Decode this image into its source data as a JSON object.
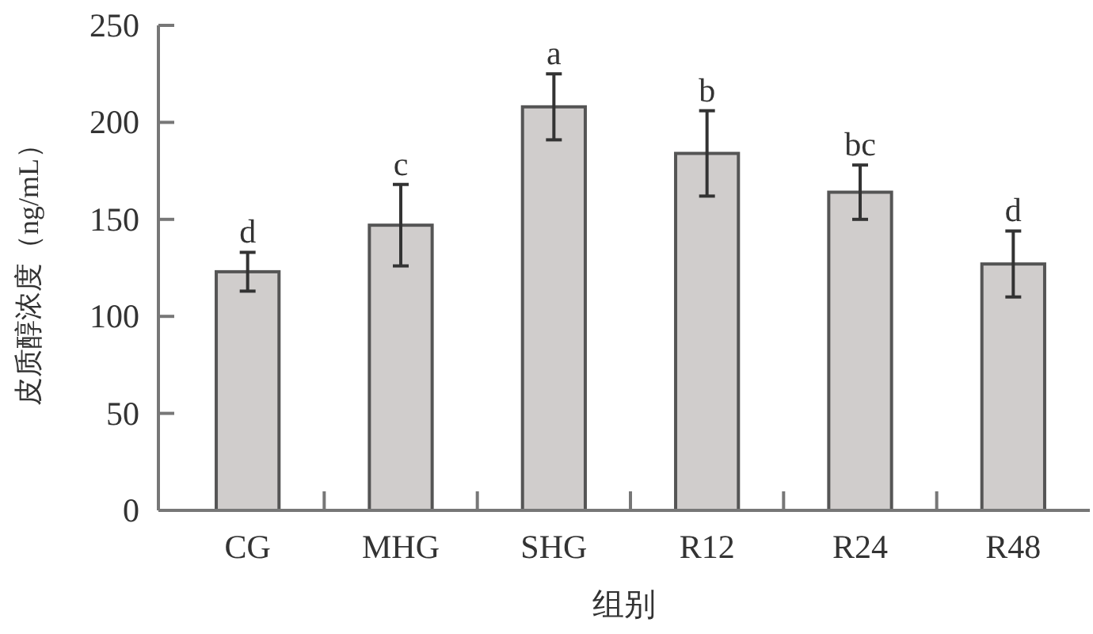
{
  "chart_data": {
    "type": "bar",
    "xlabel": "组别",
    "ylabel": "皮质醇浓度（ng/mL）",
    "categories": [
      "CG",
      "MHG",
      "SHG",
      "R12",
      "R24",
      "R48"
    ],
    "values": [
      123,
      147,
      208,
      184,
      164,
      127
    ],
    "errors": [
      10,
      21,
      17,
      22,
      14,
      17
    ],
    "color": "#d0cdcc",
    "ylim": [
      0,
      250
    ],
    "yticks": [
      0,
      50,
      100,
      150,
      200,
      250
    ],
    "grid": false,
    "annotations": [
      {
        "text": "d",
        "x": "CG",
        "y": 133
      },
      {
        "text": "c",
        "x": "MHG",
        "y": 168
      },
      {
        "text": "a",
        "x": "SHG",
        "y": 225
      },
      {
        "text": "b",
        "x": "R12",
        "y": 206
      },
      {
        "text": "bc",
        "x": "R24",
        "y": 178
      },
      {
        "text": "d",
        "x": "R48",
        "y": 144
      }
    ]
  }
}
